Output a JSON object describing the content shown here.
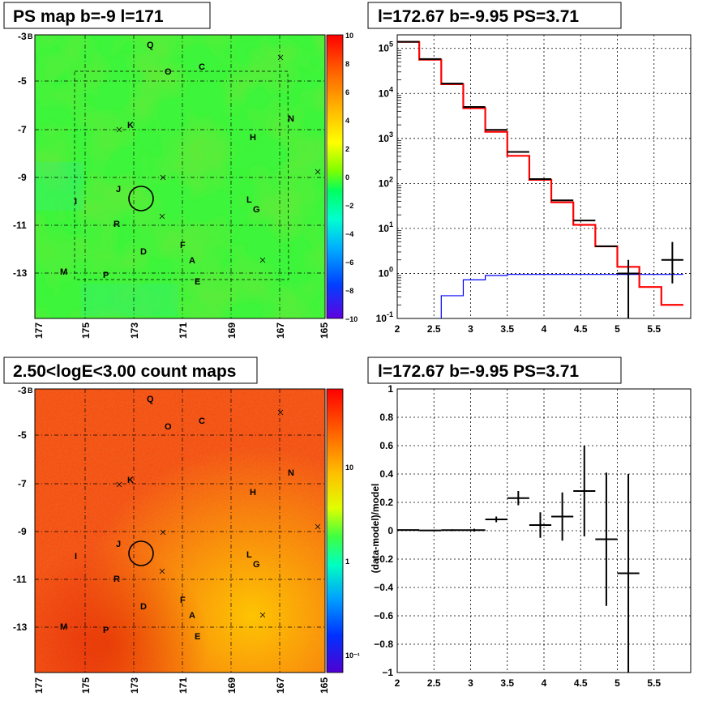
{
  "panels": {
    "ps_map": {
      "title": "PS map b=-9 l=171",
      "colorbar_ticks": [
        "10",
        "8",
        "6",
        "4",
        "2",
        "0",
        "−2",
        "−4",
        "−6",
        "−8",
        "−10"
      ]
    },
    "count_map": {
      "title": "2.50<logE<3.00 count maps",
      "colorbar_ticks": [
        "10",
        "1",
        "10⁻¹"
      ]
    },
    "map_axes": {
      "x_ticks": [
        "177",
        "175",
        "173",
        "171",
        "169",
        "167",
        "165"
      ],
      "y_ticks": [
        "-3",
        "-5",
        "-7",
        "-9",
        "-11",
        "-13"
      ],
      "y_top_tag": "B"
    },
    "map_labels": [
      "Q",
      "O",
      "C",
      "K",
      "N",
      "H",
      "J",
      "I",
      "L",
      "G",
      "R",
      "F",
      "D",
      "A",
      "M",
      "P",
      "E"
    ],
    "spectrum": {
      "title": "l=172.67 b=-9.95 PS=3.71"
    },
    "residual": {
      "title": "l=172.67 b=-9.95 PS=3.71"
    }
  },
  "colors": {
    "data": "#000000",
    "model": "#ff0000",
    "source": "#0000ff"
  },
  "chart_data": [
    {
      "type": "heatmap",
      "title": "PS map b=-9 l=171",
      "xlim": [
        177,
        165
      ],
      "ylim": [
        -14.5,
        -3
      ],
      "zlim": [
        -10,
        10
      ],
      "note_values": "test statistic map, mostly near 0 with source circle at l=172.67 b=-9.95"
    },
    {
      "type": "heatmap",
      "title": "2.50<logE<3.00 count maps",
      "xlim": [
        177,
        165
      ],
      "ylim": [
        -14.5,
        -3
      ],
      "zscale": "log"
    },
    {
      "type": "line",
      "title": "l=172.67 b=-9.95 PS=3.71",
      "xlim": [
        2,
        6
      ],
      "ylim": [
        0.1,
        200000
      ],
      "yscale": "log",
      "grid": true,
      "series": [
        {
          "kind": "data",
          "bins": [
            {
              "x0": 2.0,
              "x1": 2.3,
              "y": 140000
            },
            {
              "x0": 2.3,
              "x1": 2.6,
              "y": 58000
            },
            {
              "x0": 2.6,
              "x1": 2.9,
              "y": 16500
            },
            {
              "x0": 2.9,
              "x1": 3.2,
              "y": 5000
            },
            {
              "x0": 3.2,
              "x1": 3.5,
              "y": 1550
            },
            {
              "x0": 3.5,
              "x1": 3.8,
              "y": 500
            },
            {
              "x0": 3.8,
              "x1": 4.1,
              "y": 125
            },
            {
              "x0": 4.1,
              "x1": 4.4,
              "y": 42
            },
            {
              "x0": 4.4,
              "x1": 4.7,
              "y": 15
            },
            {
              "x0": 4.7,
              "x1": 5.0,
              "y": 4
            },
            {
              "x0": 5.0,
              "x1": 5.3,
              "y": 1,
              "ylo": 0.1,
              "yhi": 2
            },
            {
              "x0": 5.6,
              "x1": 5.9,
              "y": 2,
              "ylo": 0.6,
              "yhi": 5
            }
          ]
        },
        {
          "kind": "model",
          "steps": [
            {
              "x0": 2.0,
              "x1": 2.3,
              "y": 140000
            },
            {
              "x0": 2.3,
              "x1": 2.6,
              "y": 56000
            },
            {
              "x0": 2.6,
              "x1": 2.9,
              "y": 16000
            },
            {
              "x0": 2.9,
              "x1": 3.2,
              "y": 4700
            },
            {
              "x0": 3.2,
              "x1": 3.5,
              "y": 1400
            },
            {
              "x0": 3.5,
              "x1": 3.8,
              "y": 410
            },
            {
              "x0": 3.8,
              "x1": 4.1,
              "y": 120
            },
            {
              "x0": 4.1,
              "x1": 4.4,
              "y": 38
            },
            {
              "x0": 4.4,
              "x1": 4.7,
              "y": 12
            },
            {
              "x0": 4.7,
              "x1": 5.0,
              "y": 4
            },
            {
              "x0": 5.0,
              "x1": 5.3,
              "y": 1.4
            },
            {
              "x0": 5.3,
              "x1": 5.6,
              "y": 0.5
            },
            {
              "x0": 5.6,
              "x1": 5.9,
              "y": 0.2
            }
          ]
        },
        {
          "kind": "source",
          "steps": [
            {
              "x0": 2.6,
              "x1": 2.9,
              "y": 0.32
            },
            {
              "x0": 2.9,
              "x1": 3.2,
              "y": 0.72
            },
            {
              "x0": 3.2,
              "x1": 3.5,
              "y": 0.9
            },
            {
              "x0": 3.5,
              "x1": 5.9,
              "y": 0.95
            }
          ]
        }
      ]
    },
    {
      "type": "scatter",
      "title": "l=172.67 b=-9.95 PS=3.71",
      "ylabel": "(data-model)/model",
      "xlim": [
        2,
        6
      ],
      "ylim": [
        -1,
        1
      ],
      "grid": true,
      "x_ticks": [
        "2",
        "2.5",
        "3",
        "3.5",
        "4",
        "4.5",
        "5",
        "5.5"
      ],
      "y_ticks": [
        "1",
        "0.8",
        "0.6",
        "0.4",
        "0.2",
        "0",
        "−0.2",
        "−0.4",
        "−0.6",
        "−0.8",
        "−1"
      ],
      "points": [
        {
          "x": 2.15,
          "xerr": 0.15,
          "y": 0.005,
          "yerr": 0.003
        },
        {
          "x": 2.45,
          "xerr": 0.15,
          "y": 0.002,
          "yerr": 0.004
        },
        {
          "x": 2.75,
          "xerr": 0.15,
          "y": 0.004,
          "yerr": 0.006
        },
        {
          "x": 3.05,
          "xerr": 0.15,
          "y": 0.004,
          "yerr": 0.01
        },
        {
          "x": 3.35,
          "xerr": 0.15,
          "y": 0.08,
          "yerr": 0.02
        },
        {
          "x": 3.65,
          "xerr": 0.15,
          "y": 0.23,
          "yerr": 0.05
        },
        {
          "x": 3.95,
          "xerr": 0.15,
          "y": 0.04,
          "yerr": 0.09
        },
        {
          "x": 4.25,
          "xerr": 0.15,
          "y": 0.1,
          "yerr": 0.17
        },
        {
          "x": 4.55,
          "xerr": 0.15,
          "y": 0.28,
          "yerr": 0.32
        },
        {
          "x": 4.85,
          "xerr": 0.15,
          "y": -0.06,
          "yerr": 0.47
        },
        {
          "x": 5.15,
          "xerr": 0.15,
          "y": -0.3,
          "yerr": 0.7
        }
      ]
    }
  ]
}
